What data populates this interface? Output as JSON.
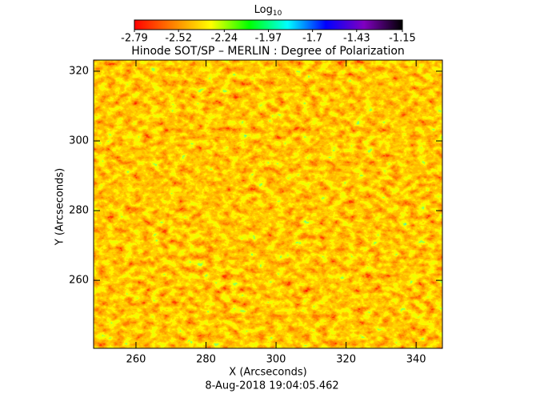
{
  "chart_data": {
    "type": "heatmap",
    "title": "Hinode SOT/SP – MERLIN : Degree of Polarization",
    "x_label": "X (Arcseconds)",
    "y_label": "Y (Arcseconds)",
    "footer": "8-Aug-2018 19:04:05.462",
    "xlim": [
      247.9,
      347.5
    ],
    "ylim": [
      240.5,
      323.2
    ],
    "xticks": [
      260,
      280,
      300,
      320,
      340
    ],
    "yticks": [
      260,
      280,
      300,
      320
    ],
    "colorbar": {
      "label": "Log",
      "label_sub": "10",
      "lim": [
        -2.79,
        -1.15
      ],
      "ticks": [
        -2.79,
        -2.52,
        -2.24,
        -1.97,
        -1.7,
        -1.43,
        -1.15
      ],
      "colors": [
        "#ff0000",
        "#ff8000",
        "#ffff00",
        "#00ff00",
        "#00ffff",
        "#0000ff",
        "#8000c0",
        "#000000"
      ]
    }
  }
}
